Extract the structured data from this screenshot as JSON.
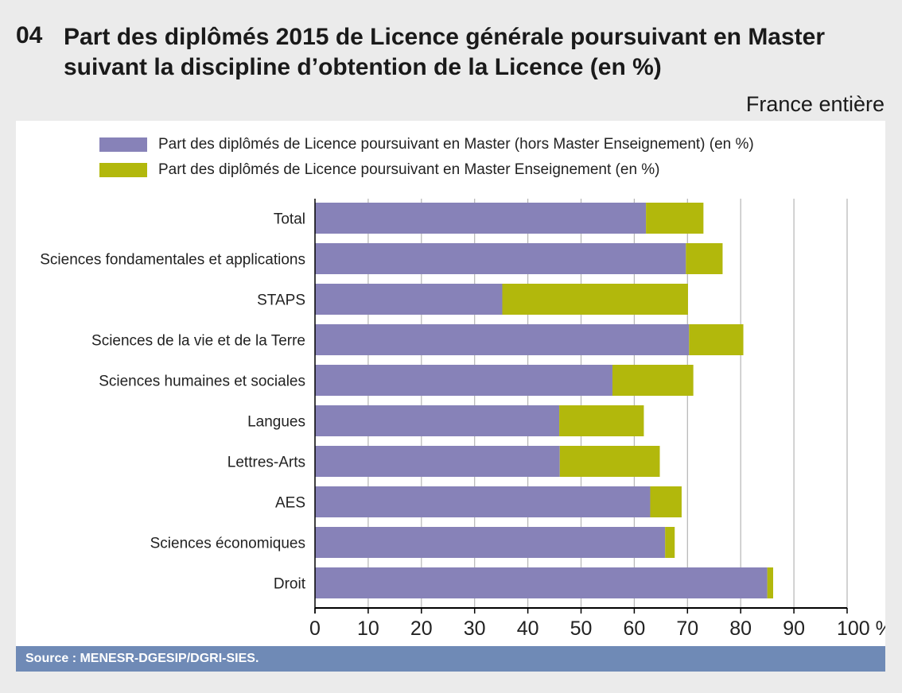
{
  "header": {
    "number": "04",
    "title": "Part des diplômés 2015 de Licence générale poursuivant en Master suivant la discipline d’obtention de la Licence (en %)",
    "scope": "France entière"
  },
  "source": "Source : MENESR-DGESIP/DGRI-SIES.",
  "colors": {
    "master": "#8782b8",
    "enseignement": "#b2b80c",
    "grid": "#b5b5b5",
    "source_bar": "#6f8ab6"
  },
  "chart_data": {
    "type": "bar",
    "orientation": "horizontal",
    "stacked": true,
    "categories": [
      "Total",
      "Sciences fondamentales et applications",
      "STAPS",
      "Sciences de la vie et de la Terre",
      "Sciences humaines et sociales",
      "Langues",
      "Lettres-Arts",
      "AES",
      "Sciences économiques",
      "Droit"
    ],
    "series": [
      {
        "name": "Part des diplômés de Licence poursuivant en Master (hors Master Enseignement) (en %)",
        "values": [
          62.2,
          69.7,
          35.2,
          70.3,
          55.9,
          45.9,
          46.0,
          63.0,
          65.8,
          85.0
        ]
      },
      {
        "name": "Part des diplômés de Licence poursuivant en Master Enseignement (en %)",
        "values": [
          10.8,
          6.9,
          34.9,
          10.2,
          15.2,
          15.9,
          18.8,
          5.9,
          1.8,
          1.1
        ]
      }
    ],
    "xlim": [
      0,
      100
    ],
    "xticks": [
      "0",
      "10",
      "20",
      "30",
      "40",
      "50",
      "60",
      "70",
      "80",
      "90",
      "100 %"
    ],
    "grid": true,
    "legend": "top"
  }
}
